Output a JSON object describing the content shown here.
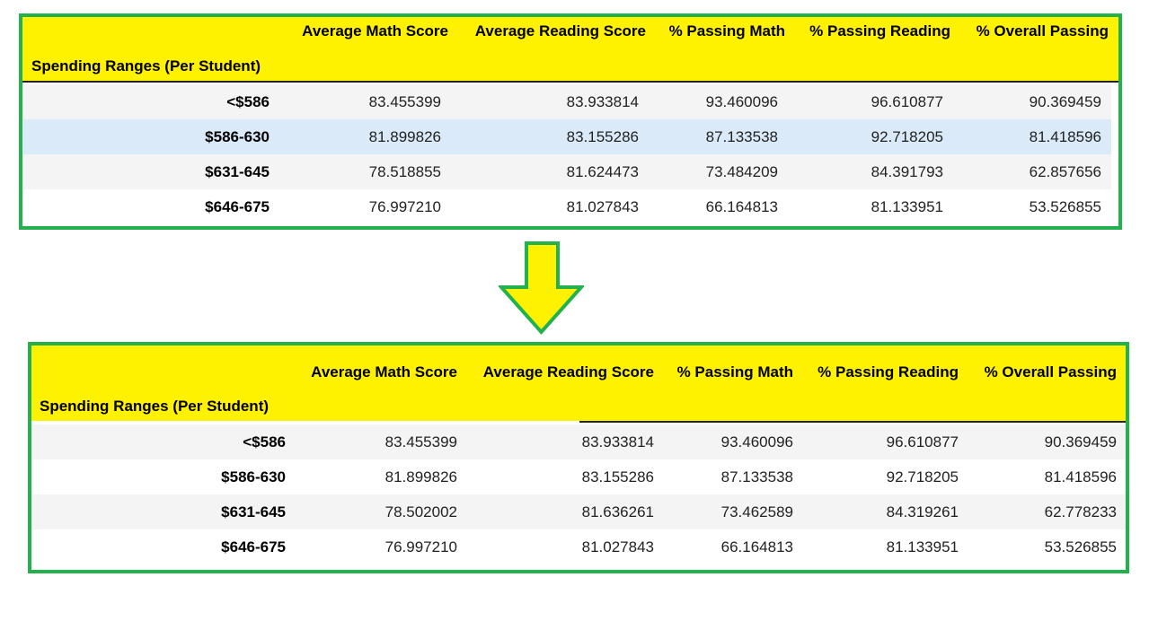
{
  "headers": {
    "index_label": "Spending Ranges (Per Student)",
    "columns": [
      "Average Math Score",
      "Average Reading Score",
      "% Passing Math",
      "% Passing Reading",
      "% Overall Passing"
    ]
  },
  "tables": {
    "top": {
      "rows": [
        {
          "label": "<$586",
          "values": [
            "83.455399",
            "83.933814",
            "93.460096",
            "96.610877",
            "90.369459"
          ]
        },
        {
          "label": "$586-630",
          "values": [
            "81.899826",
            "83.155286",
            "87.133538",
            "92.718205",
            "81.418596"
          ]
        },
        {
          "label": "$631-645",
          "values": [
            "78.518855",
            "81.624473",
            "73.484209",
            "84.391793",
            "62.857656"
          ]
        },
        {
          "label": "$646-675",
          "values": [
            "76.997210",
            "81.027843",
            "66.164813",
            "81.133951",
            "53.526855"
          ]
        }
      ]
    },
    "bottom": {
      "rows": [
        {
          "label": "<$586",
          "values": [
            "83.455399",
            "83.933814",
            "93.460096",
            "96.610877",
            "90.369459"
          ]
        },
        {
          "label": "$586-630",
          "values": [
            "81.899826",
            "83.155286",
            "87.133538",
            "92.718205",
            "81.418596"
          ]
        },
        {
          "label": "$631-645",
          "values": [
            "78.502002",
            "81.636261",
            "73.462589",
            "84.319261",
            "62.778233"
          ]
        },
        {
          "label": "$646-675",
          "values": [
            "76.997210",
            "81.027843",
            "66.164813",
            "81.133951",
            "53.526855"
          ]
        }
      ]
    }
  },
  "colors": {
    "frame": "#22b14c",
    "header_bg": "#fff200",
    "row_alt": "#f4f4f4",
    "row_highlight": "#dbeaf8",
    "arrow_fill": "#fff200",
    "arrow_stroke": "#22b14c"
  },
  "icons": {
    "arrow": "down-arrow-icon"
  }
}
